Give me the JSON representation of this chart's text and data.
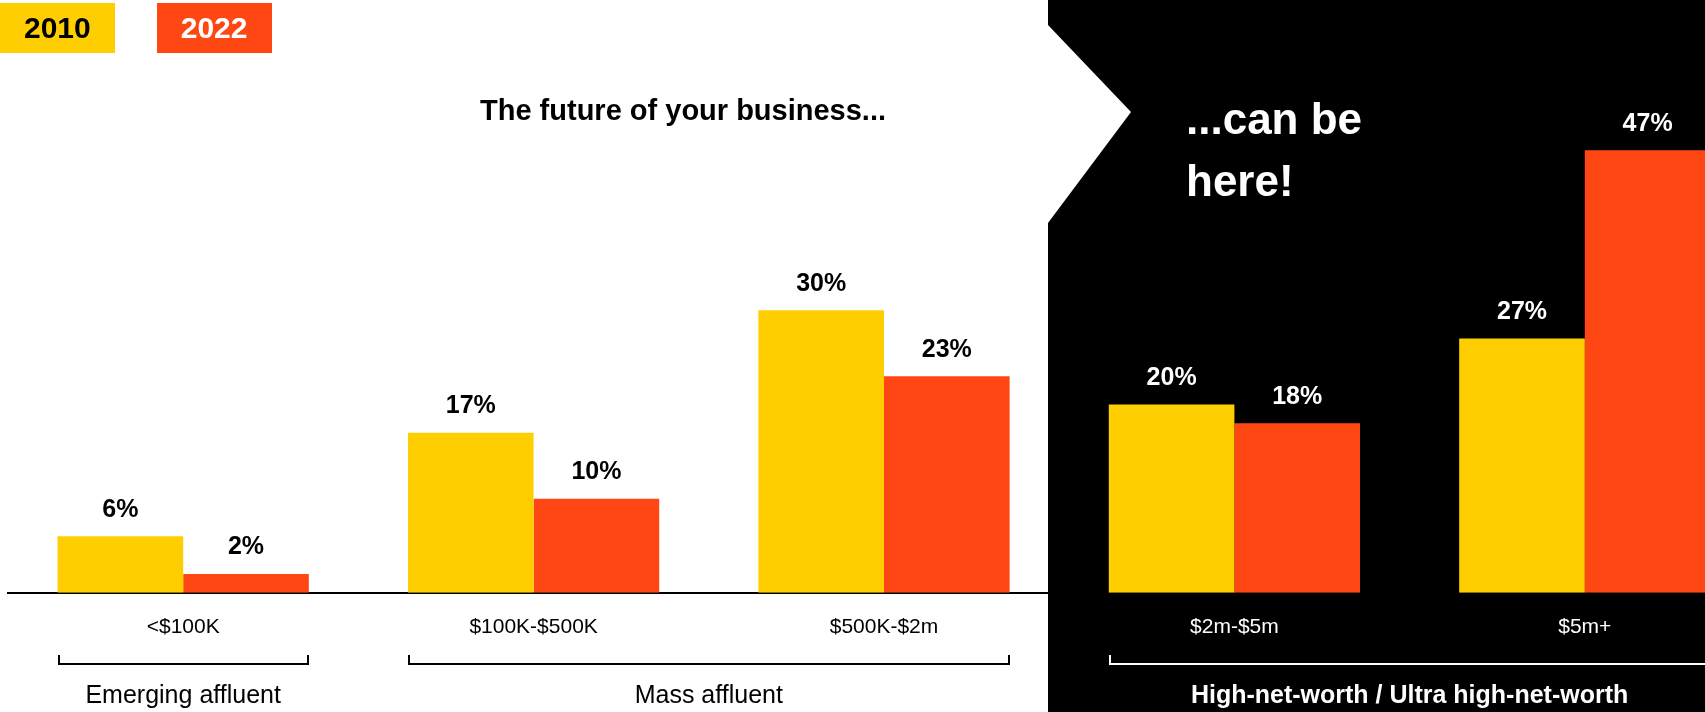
{
  "chart_data": {
    "type": "bar",
    "title": "The future of your business...",
    "categories": [
      "<$100K",
      "$100K-$500K",
      "$500K-$2m",
      "$2m-$5m",
      "$5m+"
    ],
    "series": [
      {
        "name": "2010",
        "color": "#ffce00",
        "values": [
          6,
          17,
          30,
          20,
          27
        ],
        "value_labels": [
          "6%",
          "17%",
          "30%",
          "20%",
          "27%"
        ]
      },
      {
        "name": "2022",
        "color": "#ff4713",
        "values": [
          2,
          10,
          23,
          18,
          47
        ],
        "value_labels": [
          "2%",
          "10%",
          "23%",
          "18%",
          "47%"
        ]
      }
    ],
    "legend": "top left",
    "grid": false,
    "annotations": [
      "...can be here!",
      "Emerging affluent",
      "Mass affluent",
      "High-net-worth / Ultra high-net-worth"
    ]
  }
}
